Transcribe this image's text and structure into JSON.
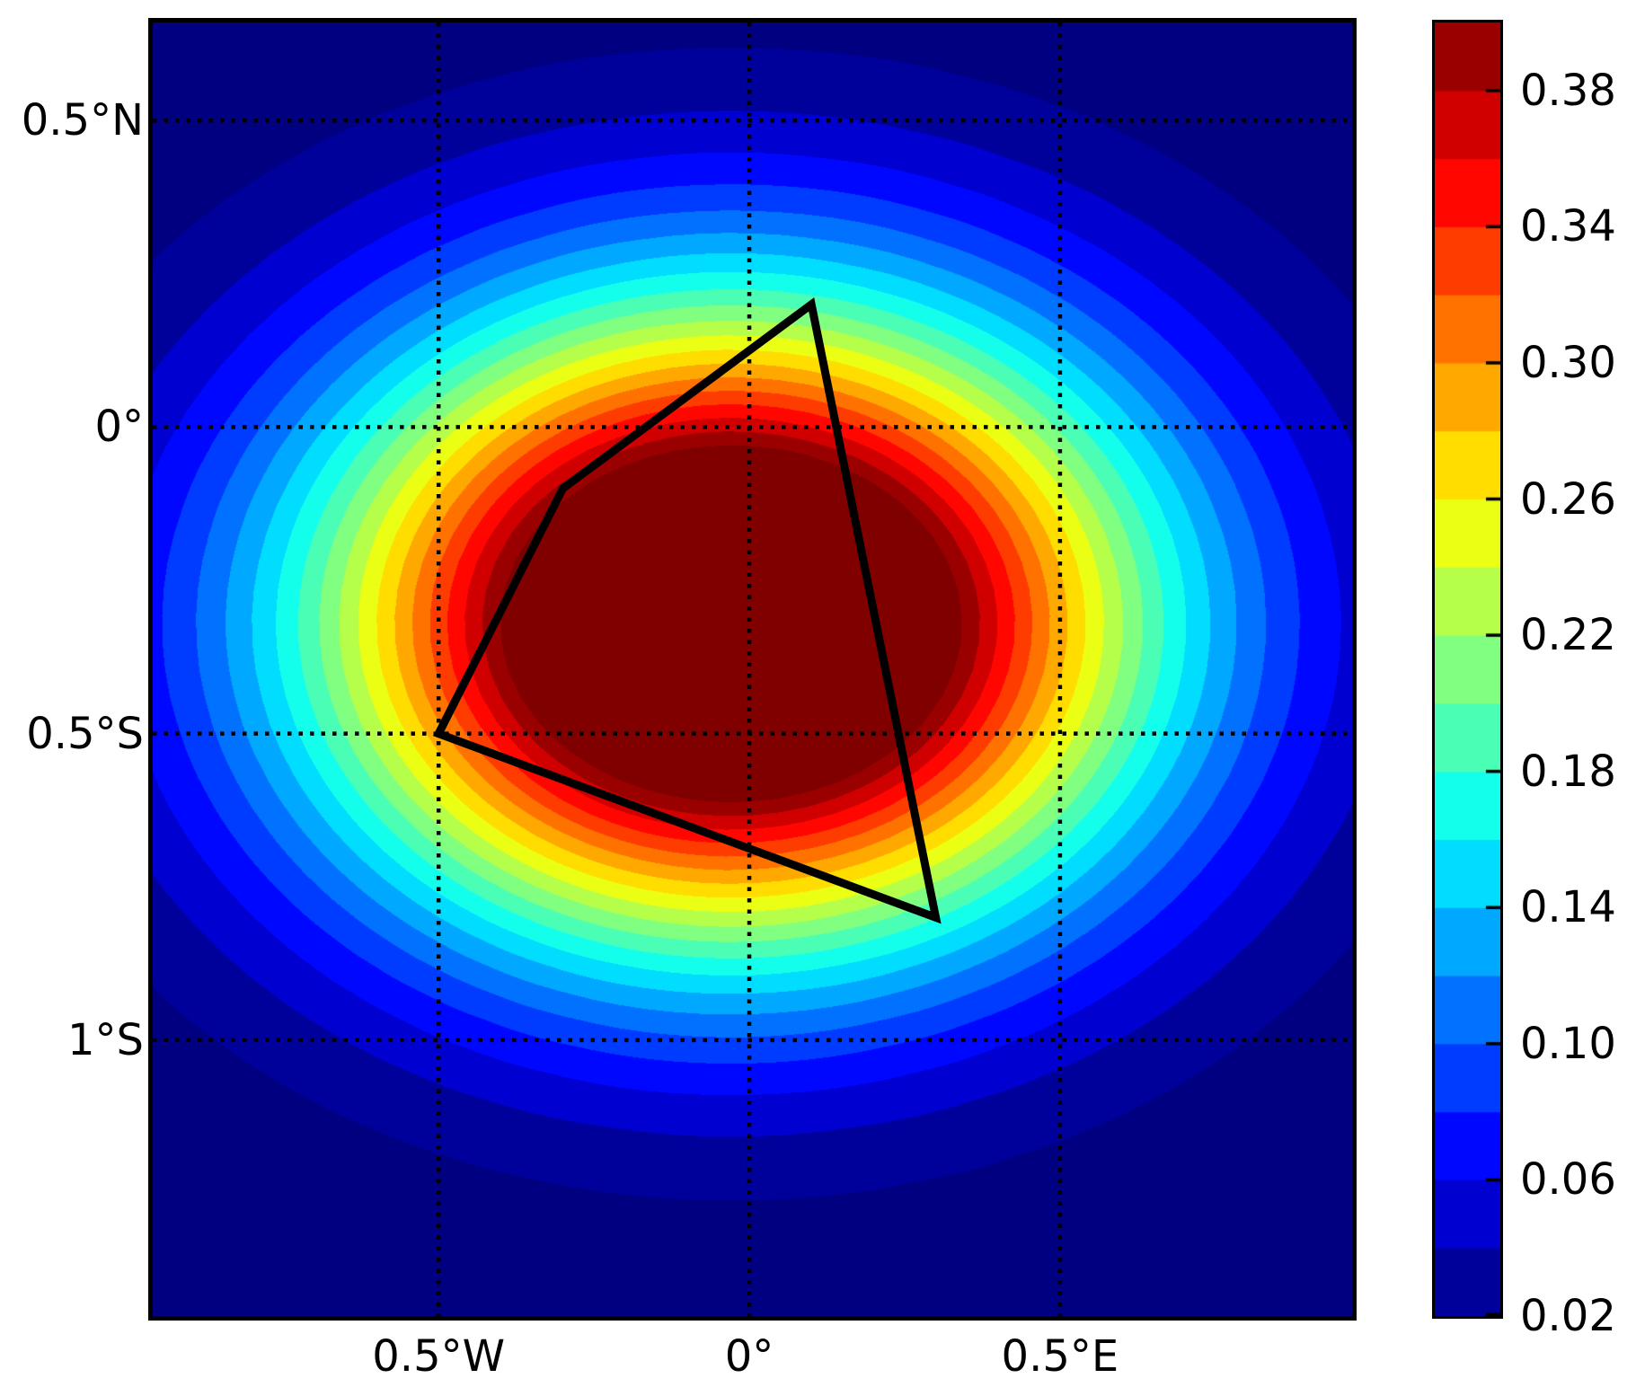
{
  "figure": {
    "background": "#ffffff",
    "border_color": "#000000"
  },
  "chart_data": {
    "type": "heatmap",
    "style": "filled_contour",
    "title": "",
    "xlabel": "",
    "ylabel": "",
    "colormap": "jet",
    "x_domain": [
      -0.96,
      0.97
    ],
    "y_domain": [
      -1.45,
      0.66
    ],
    "grid": {
      "visible": true,
      "style": "dotted",
      "color": "#000000"
    },
    "field": {
      "kind": "gaussian",
      "amplitude": 0.55,
      "center": [
        -0.03,
        -0.32
      ],
      "sigma": [
        0.466,
        0.365
      ],
      "grid_nx": 44,
      "grid_ny": 48
    },
    "levels": {
      "min": 0.02,
      "max": 0.4,
      "step": 0.02,
      "bands": 19
    },
    "xticks": [
      {
        "value": -0.5,
        "label": "0.5°W"
      },
      {
        "value": 0.0,
        "label": "0°"
      },
      {
        "value": 0.5,
        "label": "0.5°E"
      }
    ],
    "yticks": [
      {
        "value": 0.5,
        "label": "0.5°N"
      },
      {
        "value": 0.0,
        "label": "0°"
      },
      {
        "value": -0.5,
        "label": "0.5°S"
      },
      {
        "value": -1.0,
        "label": "1°S"
      }
    ],
    "colorbar": {
      "orientation": "vertical",
      "ticks": [
        {
          "value": 0.38,
          "label": "0.38"
        },
        {
          "value": 0.34,
          "label": "0.34"
        },
        {
          "value": 0.3,
          "label": "0.30"
        },
        {
          "value": 0.26,
          "label": "0.26"
        },
        {
          "value": 0.22,
          "label": "0.22"
        },
        {
          "value": 0.18,
          "label": "0.18"
        },
        {
          "value": 0.14,
          "label": "0.14"
        },
        {
          "value": 0.1,
          "label": "0.10"
        },
        {
          "value": 0.06,
          "label": "0.06"
        },
        {
          "value": 0.02,
          "label": "0.02"
        }
      ]
    },
    "overlay_polygon": {
      "color": "#000000",
      "stroke_width": 9,
      "vertices_deg": [
        [
          0.1,
          0.2
        ],
        [
          -0.3,
          -0.1
        ],
        [
          -0.5,
          -0.5
        ],
        [
          0.3,
          -0.8
        ]
      ]
    }
  }
}
